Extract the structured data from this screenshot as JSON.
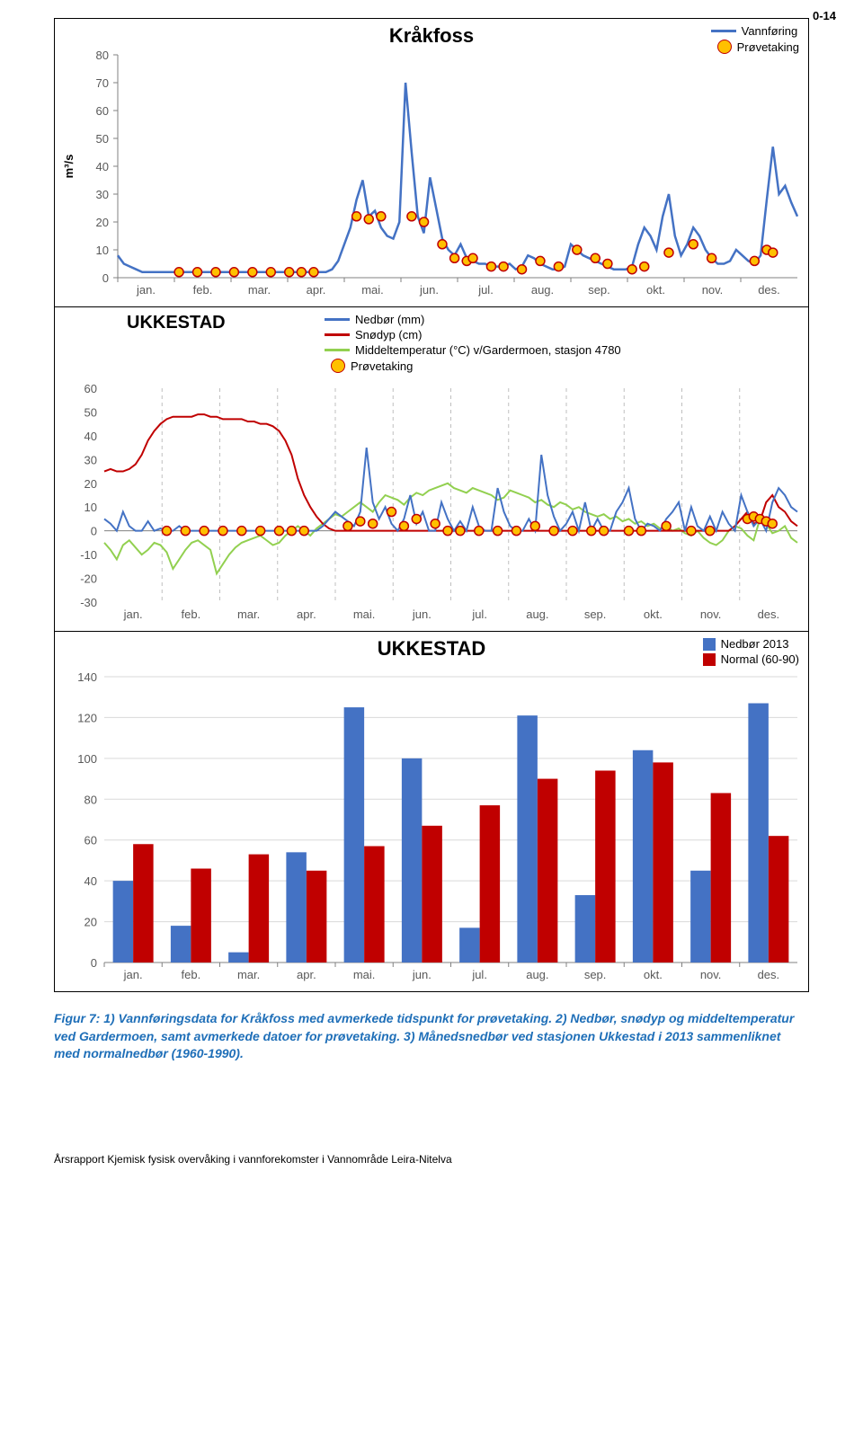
{
  "page_number": "0-14",
  "chart1": {
    "type": "line",
    "title": "Kråkfoss",
    "title_fontsize": 22,
    "ylabel": "m³/s",
    "ylabel_fontsize": 13,
    "ylim": [
      0,
      80
    ],
    "ytick_step": 10,
    "yticks": [
      0,
      10,
      20,
      30,
      40,
      50,
      60,
      70,
      80
    ],
    "x_categories": [
      "jan.",
      "feb.",
      "mar.",
      "apr.",
      "mai.",
      "jun.",
      "jul.",
      "aug.",
      "sep.",
      "okt.",
      "nov.",
      "des."
    ],
    "background_color": "#ffffff",
    "tick_color": "#808080",
    "tick_fontsize": 13,
    "legend": [
      {
        "type": "line",
        "color": "#4472c4",
        "label": "Vannføring"
      },
      {
        "type": "marker",
        "fill": "#ffc000",
        "stroke": "#c00000",
        "label": "Prøvetaking"
      }
    ],
    "series_flow": {
      "color": "#4472c4",
      "line_width": 2.5,
      "data": [
        8,
        5,
        4,
        3,
        2,
        2,
        2,
        2,
        2,
        2,
        2,
        2,
        2,
        2,
        2,
        2,
        2,
        2,
        2,
        2,
        2,
        2,
        2,
        2,
        2,
        2,
        2,
        2,
        2,
        2,
        2,
        2,
        2,
        2,
        2,
        3,
        6,
        12,
        18,
        28,
        35,
        22,
        24,
        18,
        15,
        14,
        20,
        70,
        45,
        22,
        16,
        36,
        25,
        14,
        10,
        8,
        12,
        7,
        6,
        5,
        5,
        4,
        4,
        4,
        5,
        3,
        4,
        8,
        7,
        5,
        4,
        3,
        3,
        4,
        12,
        10,
        8,
        7,
        6,
        5,
        4,
        3,
        3,
        3,
        4,
        12,
        18,
        15,
        10,
        22,
        30,
        15,
        8,
        12,
        18,
        15,
        10,
        7,
        5,
        5,
        6,
        10,
        8,
        6,
        5,
        8,
        28,
        47,
        30,
        33,
        27,
        22
      ]
    },
    "markers": {
      "fill": "#ffc000",
      "stroke": "#c00000",
      "radius": 5,
      "points": [
        {
          "x": 10,
          "y": 2
        },
        {
          "x": 13,
          "y": 2
        },
        {
          "x": 16,
          "y": 2
        },
        {
          "x": 19,
          "y": 2
        },
        {
          "x": 22,
          "y": 2
        },
        {
          "x": 25,
          "y": 2
        },
        {
          "x": 28,
          "y": 2
        },
        {
          "x": 30,
          "y": 2
        },
        {
          "x": 32,
          "y": 2
        },
        {
          "x": 39,
          "y": 22
        },
        {
          "x": 41,
          "y": 21
        },
        {
          "x": 43,
          "y": 22
        },
        {
          "x": 48,
          "y": 22
        },
        {
          "x": 50,
          "y": 20
        },
        {
          "x": 53,
          "y": 12
        },
        {
          "x": 55,
          "y": 7
        },
        {
          "x": 57,
          "y": 6
        },
        {
          "x": 58,
          "y": 7
        },
        {
          "x": 61,
          "y": 4
        },
        {
          "x": 63,
          "y": 4
        },
        {
          "x": 66,
          "y": 3
        },
        {
          "x": 69,
          "y": 6
        },
        {
          "x": 72,
          "y": 4
        },
        {
          "x": 75,
          "y": 10
        },
        {
          "x": 78,
          "y": 7
        },
        {
          "x": 80,
          "y": 5
        },
        {
          "x": 84,
          "y": 3
        },
        {
          "x": 86,
          "y": 4
        },
        {
          "x": 90,
          "y": 9
        },
        {
          "x": 94,
          "y": 12
        },
        {
          "x": 97,
          "y": 7
        },
        {
          "x": 104,
          "y": 6
        },
        {
          "x": 106,
          "y": 10
        },
        {
          "x": 107,
          "y": 9
        }
      ]
    }
  },
  "chart2": {
    "type": "line",
    "title": "UKKESTAD",
    "title_fontsize": 20,
    "ylim": [
      -30,
      60
    ],
    "yticks": [
      -30,
      -20,
      -10,
      0,
      10,
      20,
      30,
      40,
      50,
      60
    ],
    "x_categories": [
      "jan.",
      "feb.",
      "mar.",
      "apr.",
      "mai.",
      "jun.",
      "jul.",
      "aug.",
      "sep.",
      "okt.",
      "nov.",
      "des."
    ],
    "grid_color": "#bfbfbf",
    "tick_fontsize": 13,
    "legend": [
      {
        "type": "line",
        "color": "#4472c4",
        "label": "Nedbør (mm)"
      },
      {
        "type": "line",
        "color": "#c00000",
        "label": "Snødyp (cm)"
      },
      {
        "type": "line",
        "color": "#92d050",
        "label": "Middeltemperatur (°C) v/Gardermoen, stasjon 4780"
      },
      {
        "type": "marker",
        "fill": "#ffc000",
        "stroke": "#c00000",
        "label": "Prøvetaking"
      }
    ],
    "series_precip": {
      "color": "#4472c4",
      "line_width": 2,
      "data": [
        5,
        3,
        0,
        8,
        2,
        0,
        0,
        4,
        0,
        1,
        0,
        0,
        2,
        0,
        0,
        0,
        0,
        0,
        0,
        0,
        0,
        0,
        0,
        0,
        0,
        0,
        0,
        0,
        0,
        0,
        0,
        0,
        0,
        0,
        0,
        2,
        5,
        8,
        6,
        4,
        2,
        8,
        35,
        12,
        5,
        10,
        3,
        0,
        5,
        15,
        3,
        8,
        0,
        0,
        12,
        5,
        0,
        4,
        0,
        10,
        2,
        0,
        0,
        18,
        8,
        2,
        0,
        0,
        5,
        0,
        32,
        15,
        6,
        0,
        3,
        8,
        0,
        12,
        0,
        5,
        0,
        0,
        8,
        12,
        18,
        5,
        0,
        3,
        2,
        0,
        5,
        8,
        12,
        0,
        10,
        2,
        0,
        6,
        0,
        8,
        3,
        0,
        15,
        8,
        2,
        5,
        0,
        12,
        18,
        15,
        10,
        8
      ]
    },
    "series_snow": {
      "color": "#c00000",
      "line_width": 2,
      "data": [
        25,
        26,
        25,
        25,
        26,
        28,
        32,
        38,
        42,
        45,
        47,
        48,
        48,
        48,
        48,
        49,
        49,
        48,
        48,
        47,
        47,
        47,
        47,
        46,
        46,
        45,
        45,
        44,
        42,
        38,
        32,
        22,
        15,
        10,
        6,
        3,
        1,
        0,
        0,
        0,
        0,
        0,
        0,
        0,
        0,
        0,
        0,
        0,
        0,
        0,
        0,
        0,
        0,
        0,
        0,
        0,
        0,
        0,
        0,
        0,
        0,
        0,
        0,
        0,
        0,
        0,
        0,
        0,
        0,
        0,
        0,
        0,
        0,
        0,
        0,
        0,
        0,
        0,
        0,
        0,
        0,
        0,
        0,
        0,
        0,
        0,
        0,
        0,
        0,
        0,
        0,
        0,
        0,
        0,
        0,
        0,
        0,
        0,
        0,
        0,
        0,
        2,
        5,
        8,
        3,
        4,
        12,
        15,
        10,
        8,
        4,
        2
      ]
    },
    "series_temp": {
      "color": "#92d050",
      "line_width": 2,
      "data": [
        -5,
        -8,
        -12,
        -6,
        -4,
        -7,
        -10,
        -8,
        -5,
        -6,
        -9,
        -16,
        -12,
        -8,
        -5,
        -4,
        -6,
        -8,
        -18,
        -14,
        -10,
        -7,
        -5,
        -4,
        -3,
        -2,
        -4,
        -6,
        -5,
        -2,
        0,
        2,
        0,
        -2,
        1,
        3,
        5,
        7,
        6,
        8,
        10,
        12,
        10,
        8,
        12,
        15,
        14,
        13,
        11,
        14,
        16,
        15,
        17,
        18,
        19,
        20,
        18,
        17,
        16,
        18,
        17,
        16,
        15,
        13,
        14,
        17,
        16,
        15,
        14,
        12,
        13,
        11,
        10,
        12,
        11,
        9,
        10,
        8,
        7,
        6,
        7,
        5,
        6,
        4,
        5,
        3,
        4,
        2,
        3,
        1,
        2,
        0,
        1,
        -1,
        -2,
        0,
        -3,
        -5,
        -6,
        -4,
        0,
        2,
        1,
        -2,
        -4,
        5,
        3,
        -1,
        0,
        2,
        -3,
        -5
      ]
    },
    "markers": {
      "fill": "#ffc000",
      "stroke": "#c00000",
      "radius": 5,
      "points": [
        {
          "x": 10,
          "y": 0
        },
        {
          "x": 13,
          "y": 0
        },
        {
          "x": 16,
          "y": 0
        },
        {
          "x": 19,
          "y": 0
        },
        {
          "x": 22,
          "y": 0
        },
        {
          "x": 25,
          "y": 0
        },
        {
          "x": 28,
          "y": 0
        },
        {
          "x": 30,
          "y": 0
        },
        {
          "x": 32,
          "y": 0
        },
        {
          "x": 39,
          "y": 2
        },
        {
          "x": 41,
          "y": 4
        },
        {
          "x": 43,
          "y": 3
        },
        {
          "x": 46,
          "y": 8
        },
        {
          "x": 48,
          "y": 2
        },
        {
          "x": 50,
          "y": 5
        },
        {
          "x": 53,
          "y": 3
        },
        {
          "x": 55,
          "y": 0
        },
        {
          "x": 57,
          "y": 0
        },
        {
          "x": 60,
          "y": 0
        },
        {
          "x": 63,
          "y": 0
        },
        {
          "x": 66,
          "y": 0
        },
        {
          "x": 69,
          "y": 2
        },
        {
          "x": 72,
          "y": 0
        },
        {
          "x": 75,
          "y": 0
        },
        {
          "x": 78,
          "y": 0
        },
        {
          "x": 80,
          "y": 0
        },
        {
          "x": 84,
          "y": 0
        },
        {
          "x": 86,
          "y": 0
        },
        {
          "x": 90,
          "y": 2
        },
        {
          "x": 94,
          "y": 0
        },
        {
          "x": 97,
          "y": 0
        },
        {
          "x": 103,
          "y": 5
        },
        {
          "x": 104,
          "y": 6
        },
        {
          "x": 105,
          "y": 5
        },
        {
          "x": 106,
          "y": 4
        },
        {
          "x": 107,
          "y": 3
        }
      ]
    }
  },
  "chart3": {
    "type": "bar",
    "title": "UKKESTAD",
    "title_fontsize": 22,
    "ylim": [
      0,
      140
    ],
    "ytick_step": 20,
    "yticks": [
      0,
      20,
      40,
      60,
      80,
      100,
      120,
      140
    ],
    "x_categories": [
      "jan.",
      "feb.",
      "mar.",
      "apr.",
      "mai.",
      "jun.",
      "jul.",
      "aug.",
      "sep.",
      "okt.",
      "nov.",
      "des."
    ],
    "grid_color": "#d9d9d9",
    "tick_fontsize": 13,
    "legend": [
      {
        "type": "square",
        "color": "#4472c4",
        "label": "Nedbør 2013"
      },
      {
        "type": "square",
        "color": "#c00000",
        "label": "Normal (60-90)"
      }
    ],
    "series1": {
      "color": "#4472c4",
      "values": [
        40,
        18,
        5,
        54,
        125,
        100,
        17,
        121,
        33,
        104,
        45,
        127
      ]
    },
    "series2": {
      "color": "#c00000",
      "values": [
        58,
        46,
        53,
        45,
        57,
        67,
        77,
        90,
        94,
        98,
        83,
        62
      ]
    },
    "bar_width": 0.35
  },
  "caption": "Figur 7: 1) Vannføringsdata for Kråkfoss med avmerkede tidspunkt for prøvetaking. 2) Nedbør, snødyp og middeltemperatur ved Gardermoen, samt avmerkede datoer for prøvetaking. 3) Månedsnedbør ved stasjonen Ukkestad i 2013 sammenliknet med normalnedbør (1960-1990).",
  "footer": "Årsrapport Kjemisk fysisk overvåking i vannforekomster i Vannområde Leira-Nitelva"
}
